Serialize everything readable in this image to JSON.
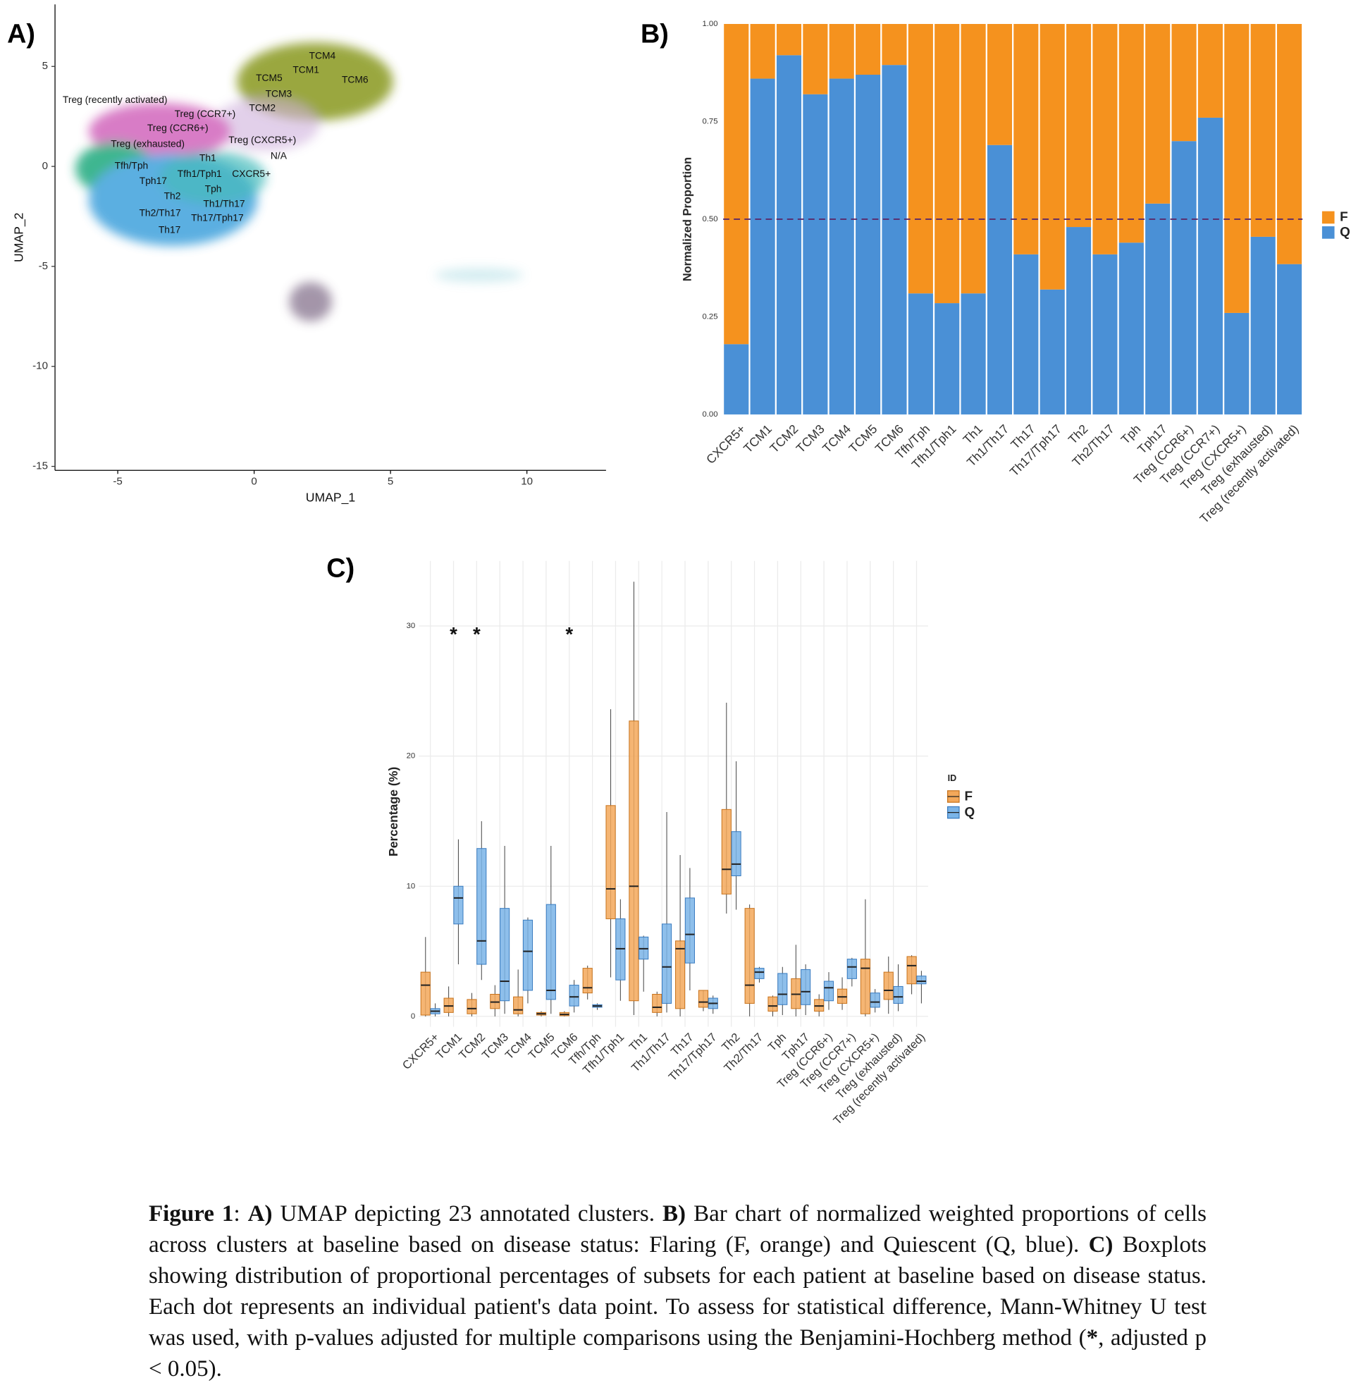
{
  "chart_data": [
    {
      "type": "scatter",
      "panel_label": "A)",
      "xlabel": "UMAP_1",
      "ylabel": "UMAP_2",
      "xlim": [
        -7.3,
        12.9
      ],
      "ylim": [
        -15.2,
        8.1
      ],
      "xticks": [
        -5,
        0,
        5,
        10
      ],
      "yticks": [
        -15,
        -10,
        -5,
        0,
        5
      ],
      "annotations": [
        {
          "text": "TCM4",
          "x": 2.5,
          "y": 5.5
        },
        {
          "text": "TCM1",
          "x": 1.9,
          "y": 4.8
        },
        {
          "text": "TCM5",
          "x": 0.55,
          "y": 4.4
        },
        {
          "text": "TCM6",
          "x": 3.7,
          "y": 4.3
        },
        {
          "text": "TCM3",
          "x": 0.9,
          "y": 3.6
        },
        {
          "text": "Treg (recently activated)",
          "x": -5.1,
          "y": 3.3
        },
        {
          "text": "Treg (CCR7+)",
          "x": -1.8,
          "y": 2.6
        },
        {
          "text": "TCM2",
          "x": 0.3,
          "y": 2.9
        },
        {
          "text": "Treg (CCR6+)",
          "x": -2.8,
          "y": 1.9
        },
        {
          "text": "Treg (exhausted)",
          "x": -3.9,
          "y": 1.1
        },
        {
          "text": "Treg (CXCR5+)",
          "x": 0.3,
          "y": 1.3
        },
        {
          "text": "N/A",
          "x": 0.9,
          "y": 0.5
        },
        {
          "text": "Th1",
          "x": -1.7,
          "y": 0.4
        },
        {
          "text": "Tfh/Tph",
          "x": -4.5,
          "y": 0.0
        },
        {
          "text": "Tfh1/Tph1",
          "x": -2.0,
          "y": -0.4
        },
        {
          "text": "CXCR5+",
          "x": -0.1,
          "y": -0.4
        },
        {
          "text": "Tph17",
          "x": -3.7,
          "y": -0.75
        },
        {
          "text": "Th2",
          "x": -3.0,
          "y": -1.5
        },
        {
          "text": "Tph",
          "x": -1.5,
          "y": -1.15
        },
        {
          "text": "Th1/Th17",
          "x": -1.1,
          "y": -1.9
        },
        {
          "text": "Th2/Th17",
          "x": -3.45,
          "y": -2.35
        },
        {
          "text": "Th17/Tph17",
          "x": -1.35,
          "y": -2.6
        },
        {
          "text": "Th17",
          "x": -3.1,
          "y": -3.2
        }
      ]
    },
    {
      "type": "bar",
      "stacked": true,
      "panel_label": "B)",
      "ylabel": "Normalized Proportion",
      "categories": [
        "CXCR5+",
        "TCM1",
        "TCM2",
        "TCM3",
        "TCM4",
        "TCM5",
        "TCM6",
        "Tfh/Tph",
        "Tfh1/Tph1",
        "Th1",
        "Th1/Th17",
        "Th17",
        "Th17/Tph17",
        "Th2",
        "Th2/Th17",
        "Tph",
        "Tph17",
        "Treg (CCR6+)",
        "Treg (CCR7+)",
        "Treg (CXCR5+)",
        "Treg (exhausted)",
        "Treg (recently activated)"
      ],
      "series": [
        {
          "name": "F",
          "color": "#f5921e",
          "values": [
            0.82,
            0.14,
            0.08,
            0.18,
            0.14,
            0.13,
            0.105,
            0.69,
            0.715,
            0.69,
            0.31,
            0.59,
            0.68,
            0.52,
            0.59,
            0.56,
            0.46,
            0.3,
            0.24,
            0.74,
            0.545,
            0.615
          ]
        },
        {
          "name": "Q",
          "color": "#4a90d6",
          "values": [
            0.18,
            0.86,
            0.92,
            0.82,
            0.86,
            0.87,
            0.895,
            0.31,
            0.285,
            0.31,
            0.69,
            0.41,
            0.32,
            0.48,
            0.41,
            0.44,
            0.54,
            0.7,
            0.76,
            0.26,
            0.455,
            0.385
          ]
        }
      ],
      "ylim": [
        0,
        1
      ],
      "yticks": [
        {
          "value": 0,
          "label": "0.00"
        },
        0.25,
        {
          "value": 0.5,
          "label": "0.50"
        },
        0.75,
        {
          "value": 1,
          "label": "1.00"
        }
      ],
      "hline": 0.5,
      "hline_color": "#5a2a6a",
      "legend": "right"
    },
    {
      "type": "box",
      "panel_label": "C)",
      "ylabel": "Percentage (%)",
      "legend_title": "ID",
      "legend": "right",
      "grid": true,
      "categories": [
        "CXCR5+",
        "TCM1",
        "TCM2",
        "TCM3",
        "TCM4",
        "TCM5",
        "TCM6",
        "Tfh/Tph",
        "Tfh1/Tph1",
        "Th1",
        "Th1/Th17",
        "Th17",
        "Th17/Tph17",
        "Th2",
        "Th2/Th17",
        "Tph",
        "Tph17",
        "Treg (CCR6+)",
        "Treg (CCR7+)",
        "Treg (CXCR5+)",
        "Treg (exhausted)",
        "Treg (recently activated)"
      ],
      "series": [
        {
          "name": "F",
          "color": "#f3a85a",
          "stroke": "#c8731c",
          "min": [
            0,
            0,
            0,
            0,
            0,
            0,
            0,
            1.3,
            3.0,
            0.1,
            0,
            0,
            0.4,
            7.9,
            0,
            0,
            0,
            0,
            0.5,
            0,
            0.2,
            1.7
          ],
          "q1": [
            0.1,
            0.3,
            0.2,
            0.6,
            0.2,
            0.1,
            0.05,
            1.8,
            7.5,
            1.2,
            0.3,
            0.6,
            0.7,
            9.4,
            1.0,
            0.4,
            0.6,
            0.4,
            1.0,
            0.2,
            1.3,
            2.5
          ],
          "median": [
            2.4,
            0.8,
            0.6,
            1.1,
            0.5,
            0.2,
            0.15,
            2.2,
            9.8,
            10.0,
            0.7,
            5.2,
            1.1,
            11.3,
            2.4,
            0.8,
            1.7,
            0.8,
            1.5,
            3.7,
            2.0,
            3.9
          ],
          "q3": [
            3.4,
            1.4,
            1.3,
            1.7,
            1.5,
            0.3,
            0.3,
            3.7,
            16.2,
            22.7,
            1.7,
            5.8,
            2.0,
            15.9,
            8.3,
            1.5,
            2.9,
            1.3,
            2.1,
            4.4,
            3.4,
            4.6
          ],
          "max": [
            6.1,
            2.3,
            1.8,
            2.4,
            3.6,
            0.4,
            0.4,
            3.9,
            23.6,
            33.4,
            1.9,
            12.4,
            2.0,
            24.1,
            8.6,
            1.6,
            5.5,
            1.7,
            3.0,
            9.0,
            4.6,
            4.7
          ]
        },
        {
          "name": "Q",
          "color": "#7ab4e8",
          "stroke": "#3a7cc0",
          "min": [
            0,
            4.0,
            2.8,
            0.2,
            1.0,
            0.2,
            0.3,
            0.5,
            1.2,
            1.9,
            0.3,
            2.0,
            0.2,
            8.2,
            2.6,
            0.1,
            0.1,
            0.5,
            2.3,
            0.3,
            0.4,
            1.0
          ],
          "q1": [
            0.2,
            7.1,
            4.0,
            1.2,
            2.0,
            1.3,
            0.8,
            0.7,
            2.8,
            4.4,
            1.0,
            4.1,
            0.6,
            10.8,
            2.9,
            0.9,
            0.9,
            1.2,
            2.9,
            0.7,
            1.0,
            2.5
          ],
          "median": [
            0.4,
            9.1,
            5.8,
            2.7,
            5.0,
            2.0,
            1.5,
            0.8,
            5.2,
            5.2,
            3.8,
            6.3,
            1.0,
            11.7,
            3.4,
            1.7,
            1.9,
            2.2,
            3.8,
            1.1,
            1.5,
            2.7
          ],
          "q3": [
            0.6,
            10.0,
            12.9,
            8.3,
            7.4,
            8.6,
            2.4,
            0.9,
            7.5,
            6.1,
            7.1,
            9.1,
            1.4,
            14.2,
            3.7,
            3.3,
            3.6,
            2.7,
            4.4,
            1.8,
            2.3,
            3.1
          ],
          "max": [
            1.0,
            13.6,
            15.0,
            13.1,
            7.6,
            13.1,
            2.8,
            1.0,
            9.0,
            6.2,
            15.7,
            11.4,
            1.6,
            19.6,
            3.8,
            3.8,
            4.0,
            3.4,
            4.5,
            2.1,
            4.0,
            3.5
          ]
        }
      ],
      "ylim": [
        -0.8,
        35
      ],
      "yticks": [
        0,
        10,
        20,
        30
      ],
      "annotations": [
        {
          "text": "*",
          "category": "TCM1",
          "y": 29.4
        },
        {
          "text": "*",
          "category": "TCM2",
          "y": 29.4
        },
        {
          "text": "*",
          "category": "TCM6",
          "y": 29.4
        }
      ]
    }
  ],
  "caption": [
    {
      "text": "Figure 1",
      "bold": true
    },
    {
      "text": ": "
    },
    {
      "text": "A)",
      "bold": true
    },
    {
      "text": " UMAP depicting 23 annotated clusters. "
    },
    {
      "text": "B)",
      "bold": true
    },
    {
      "text": " Bar chart of normalized weighted proportions of cells across clusters at baseline based on disease status: Flaring (F, orange) and Quiescent (Q, blue). "
    },
    {
      "text": "C)",
      "bold": true
    },
    {
      "text": " Boxplots showing distribution of proportional percentages of subsets for each patient at baseline based on disease status. Each dot represents an individual patient's data point. To assess for statistical difference, Mann-Whitney U test was used, with p-values adjusted for multiple comparisons using the Benjamini-Hochberg method ("
    },
    {
      "text": "*",
      "bold": true
    },
    {
      "text": ", adjusted p < 0.05)."
    }
  ]
}
